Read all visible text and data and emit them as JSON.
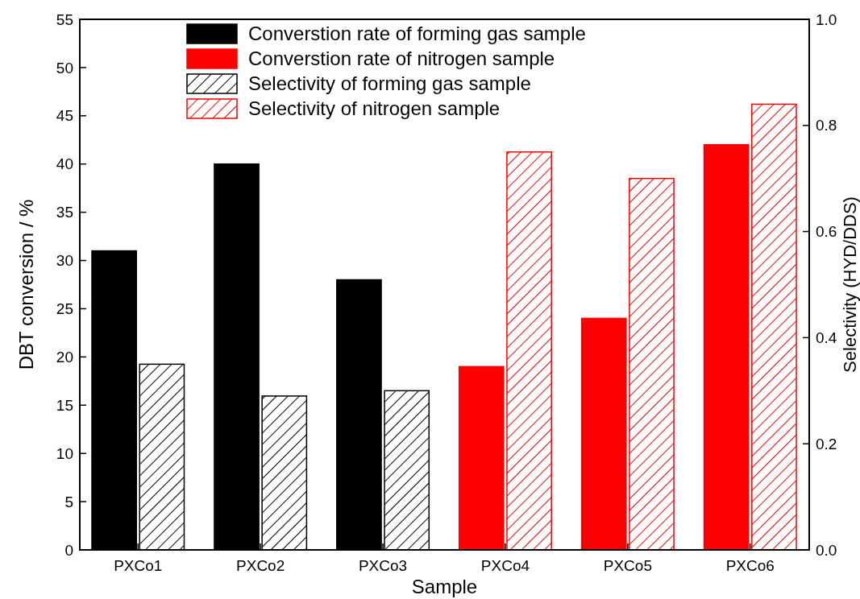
{
  "chart_data": {
    "type": "bar",
    "xlabel": "Sample",
    "ylabel": "DBT conversion / %",
    "y2label": "Selectivity (HYD/DDS)",
    "categories": [
      "PXCo1",
      "PXCo2",
      "PXCo3",
      "PXCo4",
      "PXCo5",
      "PXCo6"
    ],
    "series": [
      {
        "name": "Converstion rate of forming gas sample",
        "color": "#000000",
        "values": [
          31,
          40,
          28,
          null,
          null,
          null
        ]
      },
      {
        "name": "Converstion rate of nitrogen sample",
        "color": "#ff0000",
        "values": [
          null,
          null,
          null,
          19,
          24,
          42
        ]
      },
      {
        "name": "Selectivity of forming gas sample",
        "color": "#000000",
        "axis": "y2",
        "values": [
          0.35,
          0.29,
          0.3,
          null,
          null,
          null
        ]
      },
      {
        "name": "Selectivity of nitrogen sample",
        "color": "#ff0000",
        "axis": "y2",
        "values": [
          null,
          null,
          null,
          0.75,
          0.7,
          0.84
        ]
      }
    ],
    "ylim": [
      0,
      55
    ],
    "yticks": [
      0,
      5,
      10,
      15,
      20,
      25,
      30,
      35,
      40,
      45,
      50,
      55
    ],
    "y2lim": [
      0,
      1
    ],
    "y2ticks": [
      {
        "value": 0,
        "label": "0.0"
      },
      0.2,
      0.4,
      0.6,
      0.8,
      {
        "value": 1,
        "label": "1.0"
      }
    ],
    "legend": "top",
    "grid": false
  }
}
